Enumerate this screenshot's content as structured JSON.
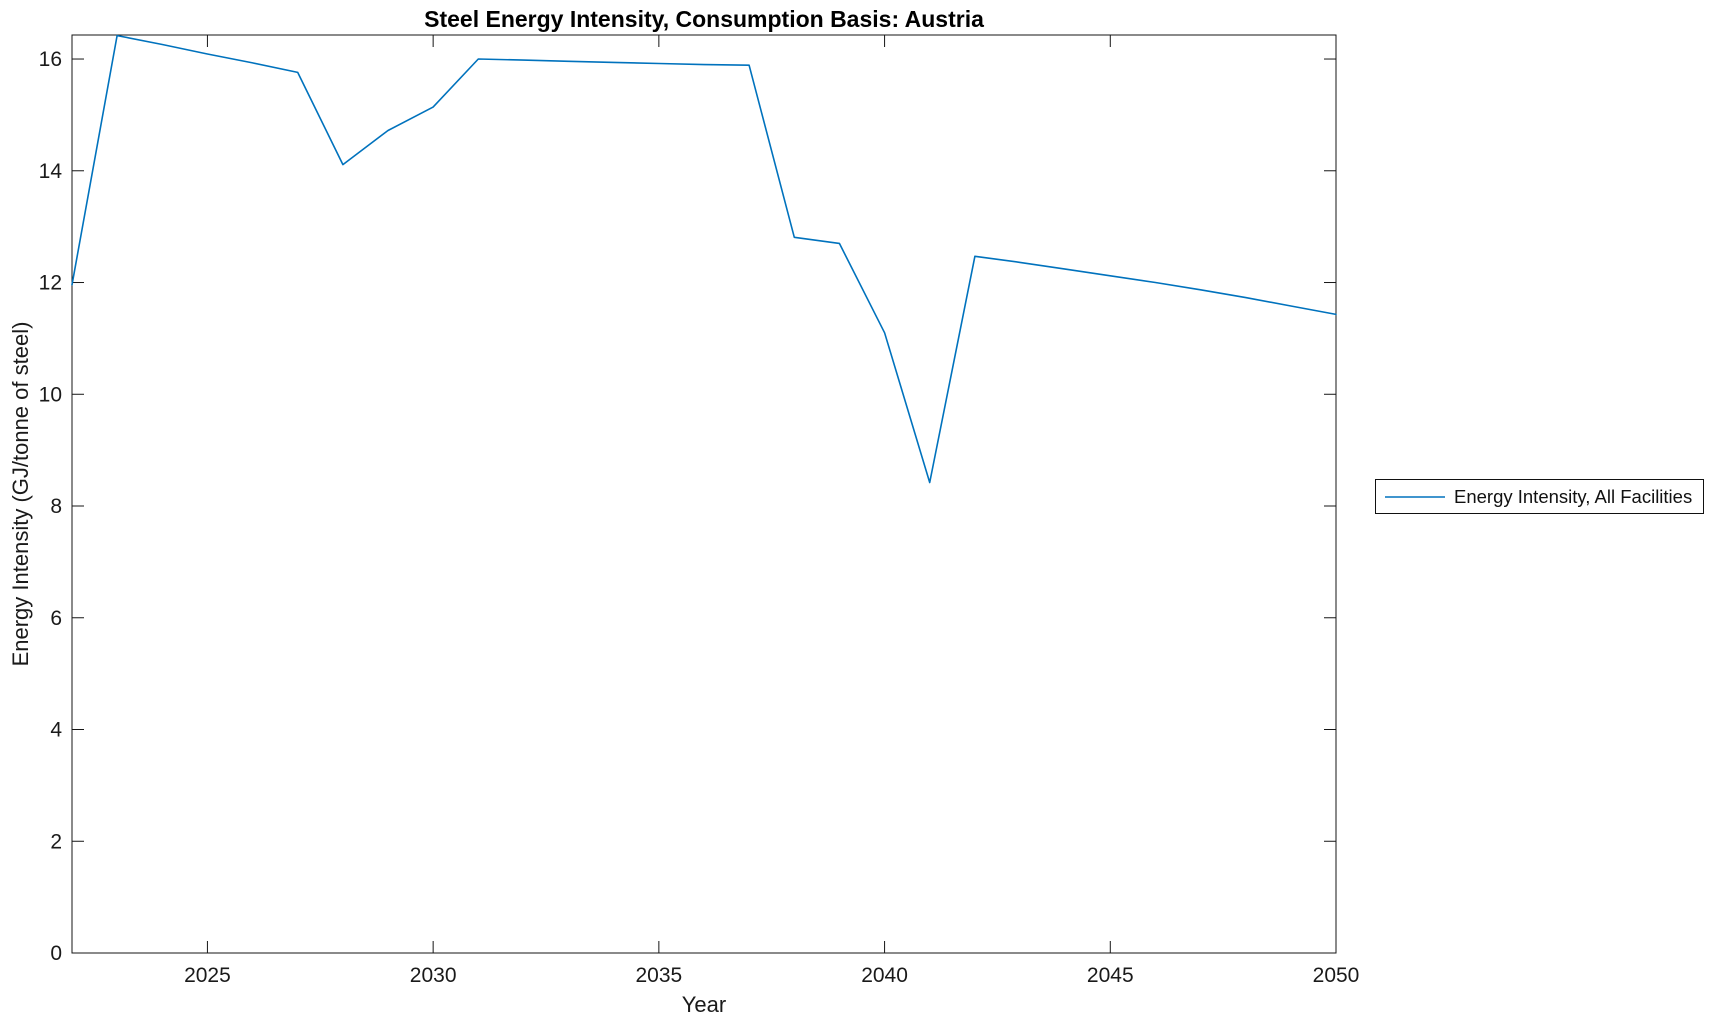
{
  "figure": {
    "title": "Steel Energy Intensity, Consumption Basis: Austria",
    "xlabel": "Year",
    "ylabel": "Energy Intensity (GJ/tonne of steel)"
  },
  "legend": {
    "entries": [
      {
        "label": "Energy Intensity, All Facilities",
        "color": "#0072BD"
      }
    ],
    "position": "outside-right"
  },
  "colors": {
    "line": "#0072BD",
    "axis": "#151515",
    "tick_label": "#1a1a1a",
    "background": "#ffffff"
  },
  "chart_data": {
    "type": "line",
    "title": "Steel Energy Intensity, Consumption Basis: Austria",
    "xlabel": "Year",
    "ylabel": "Energy Intensity (GJ/tonne of steel)",
    "xlim": [
      2022,
      2050
    ],
    "ylim": [
      0,
      16.43
    ],
    "xticks": [
      2025,
      2030,
      2035,
      2040,
      2045,
      2050
    ],
    "yticks": [
      0,
      2,
      4,
      6,
      8,
      10,
      12,
      14,
      16
    ],
    "grid": false,
    "box": true,
    "tick_direction": "in",
    "legend_position": "outside-right",
    "series": [
      {
        "name": "Energy Intensity, All Facilities",
        "color": "#0072BD",
        "x": [
          2022,
          2023,
          2024,
          2025,
          2026,
          2027,
          2028,
          2029,
          2030,
          2031,
          2032,
          2033,
          2034,
          2035,
          2036,
          2037,
          2038,
          2039,
          2040,
          2041,
          2042,
          2043,
          2044,
          2045,
          2046,
          2047,
          2048,
          2049,
          2050
        ],
        "values": [
          11.96,
          16.42,
          16.26,
          16.09,
          15.93,
          15.76,
          14.11,
          14.72,
          15.14,
          16.0,
          15.98,
          15.96,
          15.94,
          15.92,
          15.9,
          15.89,
          12.81,
          12.7,
          11.1,
          8.42,
          12.47,
          12.36,
          12.24,
          12.12,
          12.0,
          11.87,
          11.73,
          11.58,
          11.43
        ]
      }
    ]
  }
}
